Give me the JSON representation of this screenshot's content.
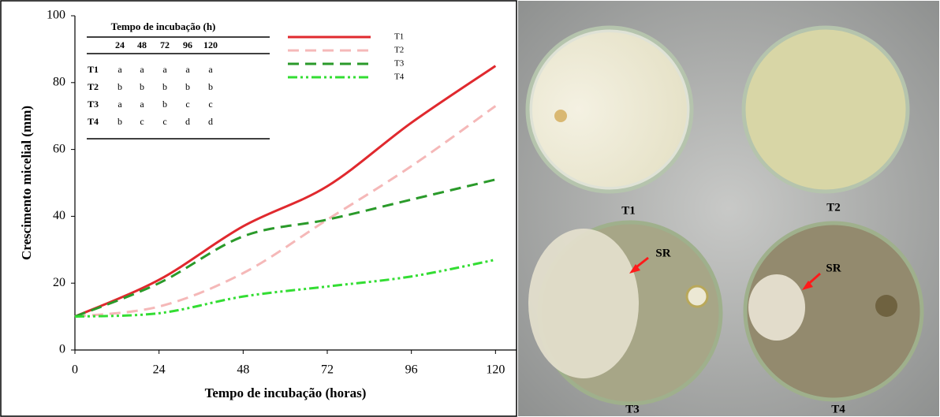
{
  "chart_data": {
    "type": "line",
    "x_label": "Tempo de incubação (horas)",
    "y_label": "Crescimento micelial (mm)",
    "x": [
      0,
      24,
      48,
      72,
      96,
      120
    ],
    "series": [
      {
        "name": "T1",
        "color": "#e0292e",
        "dash": "solid",
        "values": [
          10,
          21,
          37,
          49,
          68,
          85
        ]
      },
      {
        "name": "T2",
        "color": "#f5b8b8",
        "dash": "dashed",
        "values": [
          10,
          13,
          23,
          39,
          55,
          73
        ]
      },
      {
        "name": "T3",
        "color": "#2a9a2a",
        "dash": "dashed",
        "values": [
          10,
          20,
          34,
          39,
          45,
          51
        ]
      },
      {
        "name": "T4",
        "color": "#33dd33",
        "dash": "dashdotdot",
        "values": [
          10,
          11,
          16,
          19,
          22,
          27
        ]
      }
    ],
    "xlim": [
      0,
      126
    ],
    "xticks": [
      0,
      24,
      48,
      72,
      96,
      120
    ],
    "ylim": [
      0,
      100
    ],
    "yticks": [
      0,
      20,
      40,
      60,
      80,
      100
    ],
    "grid": false,
    "table": {
      "title": "Tempo de incubação (h)",
      "columns": [
        "24",
        "48",
        "72",
        "96",
        "120"
      ],
      "rows": [
        [
          "T1",
          "a",
          "a",
          "a",
          "a",
          "a"
        ],
        [
          "T2",
          "b",
          "b",
          "b",
          "b",
          "b"
        ],
        [
          "T3",
          "a",
          "a",
          "b",
          "c",
          "c"
        ],
        [
          "T4",
          "b",
          "c",
          "c",
          "d",
          "d"
        ]
      ]
    }
  },
  "photo": {
    "labels": [
      "T1",
      "T2",
      "T3",
      "T4"
    ],
    "annotations": [
      "SR",
      "SR"
    ]
  }
}
